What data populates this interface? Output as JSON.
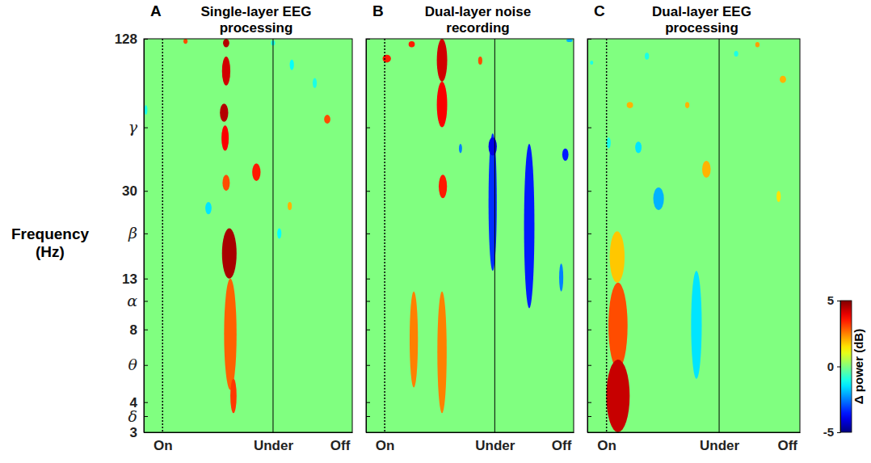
{
  "chart_data": [
    {
      "type": "heatmap",
      "panel": "A",
      "title": "Single-layer EEG processing",
      "y_label": "Frequency (Hz)",
      "xlim": [
        0,
        100
      ],
      "xticks": [
        {
          "value": 9,
          "label": "On"
        },
        {
          "value": 62,
          "label": "Under"
        },
        {
          "value": 94,
          "label": "Off"
        }
      ],
      "ylim": [
        3,
        128
      ],
      "log": "y",
      "yticks": [
        128,
        {
          "value": 55,
          "label": "γ"
        },
        30,
        {
          "value": 20,
          "label": "β"
        },
        13,
        {
          "value": 10.5,
          "label": "α"
        },
        8,
        {
          "value": 5.7,
          "label": "θ"
        },
        4,
        {
          "value": 3.5,
          "label": "δ"
        },
        3
      ],
      "background_value": 0,
      "cells": [
        {
          "x": 39.5,
          "width": 3,
          "f_low": 118,
          "f_high": 128,
          "value": 4.5
        },
        {
          "x": 39.5,
          "width": 4,
          "f_low": 82,
          "f_high": 108,
          "value": 4.2
        },
        {
          "x": 38.5,
          "width": 4,
          "f_low": 58,
          "f_high": 69,
          "value": 4.5
        },
        {
          "x": 39,
          "width": 3.5,
          "f_low": 44,
          "f_high": 56,
          "value": 3.8
        },
        {
          "x": 39.5,
          "width": 3.5,
          "f_low": 30,
          "f_high": 35,
          "value": 3
        },
        {
          "x": 20,
          "width": 2,
          "f_low": 122,
          "f_high": 128,
          "value": 3
        },
        {
          "x": 54,
          "width": 4,
          "f_low": 33,
          "f_high": 39,
          "value": 3.5
        },
        {
          "x": 41.5,
          "width": 6,
          "f_low": 4.5,
          "f_high": 13,
          "value": 2.8
        },
        {
          "x": 43,
          "width": 3,
          "f_low": 3.6,
          "f_high": 5,
          "value": 3.2
        },
        {
          "x": 41,
          "width": 7,
          "f_low": 13,
          "f_high": 21,
          "value": 4.6
        },
        {
          "x": 31,
          "width": 3,
          "f_low": 24,
          "f_high": 27,
          "value": -1.5
        },
        {
          "x": 1,
          "width": 1.5,
          "f_low": 62,
          "f_high": 68,
          "value": -1
        },
        {
          "x": 65,
          "width": 2,
          "f_low": 19,
          "f_high": 21,
          "value": -1.2
        },
        {
          "x": 71,
          "width": 2,
          "f_low": 95,
          "f_high": 105,
          "value": -1.2
        },
        {
          "x": 82,
          "width": 2,
          "f_low": 80,
          "f_high": 88,
          "value": -1
        },
        {
          "x": 62,
          "width": 2,
          "f_low": 120,
          "f_high": 126,
          "value": -1
        },
        {
          "x": 88,
          "width": 3,
          "f_low": 57,
          "f_high": 62,
          "value": 3
        },
        {
          "x": 70,
          "width": 2,
          "f_low": 25,
          "f_high": 27,
          "value": 2
        }
      ]
    },
    {
      "type": "heatmap",
      "panel": "B",
      "title": "Dual-layer noise recording",
      "xlim": [
        0,
        100
      ],
      "xticks": [
        {
          "value": 9,
          "label": "On"
        },
        {
          "value": 62,
          "label": "Under"
        },
        {
          "value": 94,
          "label": "Off"
        }
      ],
      "ylim": [
        3,
        128
      ],
      "log": "y",
      "yticks": [
        128,
        {
          "value": 55,
          "label": "γ"
        },
        30,
        {
          "value": 20,
          "label": "β"
        },
        13,
        {
          "value": 10.5,
          "label": "α"
        },
        8,
        {
          "value": 5.7,
          "label": "θ"
        },
        4,
        {
          "value": 3.5,
          "label": "δ"
        },
        3
      ],
      "tick_labels": "x",
      "background_value": 0,
      "cells": [
        {
          "x": 36.6,
          "width": 5,
          "f_low": 85,
          "f_high": 128,
          "value": 4.2
        },
        {
          "x": 36.6,
          "width": 5,
          "f_low": 55,
          "f_high": 85,
          "value": 3.8
        },
        {
          "x": 22,
          "width": 3,
          "f_low": 118,
          "f_high": 125,
          "value": 3.5
        },
        {
          "x": 10,
          "width": 4,
          "f_low": 102,
          "f_high": 110,
          "value": 3.5
        },
        {
          "x": 55,
          "width": 2,
          "f_low": 100,
          "f_high": 108,
          "value": 3
        },
        {
          "x": 37,
          "width": 4,
          "f_low": 28,
          "f_high": 35,
          "value": 3.5
        },
        {
          "x": 23,
          "width": 4,
          "f_low": 4.6,
          "f_high": 11.5,
          "value": 2.5
        },
        {
          "x": 36.6,
          "width": 4.5,
          "f_low": 3.6,
          "f_high": 11.5,
          "value": 2.5
        },
        {
          "x": 61,
          "width": 4,
          "f_low": 14,
          "f_high": 52,
          "value": -3.3
        },
        {
          "x": 61,
          "width": 4,
          "f_low": 42,
          "f_high": 50,
          "value": -4
        },
        {
          "x": 78.6,
          "width": 5,
          "f_low": 9.8,
          "f_high": 47,
          "value": -3.5
        },
        {
          "x": 96,
          "width": 3,
          "f_low": 40,
          "f_high": 45,
          "value": -3.5
        },
        {
          "x": 94,
          "width": 2,
          "f_low": 11.5,
          "f_high": 15,
          "value": -2.5
        },
        {
          "x": 45.5,
          "width": 1.5,
          "f_low": 43,
          "f_high": 47,
          "value": -2.5
        },
        {
          "x": 98,
          "width": 3,
          "f_low": 124,
          "f_high": 128,
          "value": -2
        }
      ]
    },
    {
      "type": "heatmap",
      "panel": "C",
      "title": "Dual-layer EEG processing",
      "xlim": [
        0,
        100
      ],
      "xticks": [
        {
          "value": 9,
          "label": "On"
        },
        {
          "value": 62,
          "label": "Under"
        },
        {
          "value": 94,
          "label": "Off"
        }
      ],
      "ylim": [
        3,
        128
      ],
      "log": "y",
      "yticks": [
        128,
        {
          "value": 55,
          "label": "γ"
        },
        30,
        {
          "value": 20,
          "label": "β"
        },
        13,
        {
          "value": 10.5,
          "label": "α"
        },
        8,
        {
          "value": 5.7,
          "label": "θ"
        },
        4,
        {
          "value": 3.5,
          "label": "δ"
        },
        3
      ],
      "tick_labels": "x",
      "background_value": 0,
      "colorbar": {
        "lim": [
          -5,
          5
        ],
        "ticks": [
          -5,
          0,
          5
        ],
        "label": "Δ power (dB)"
      },
      "cells": [
        {
          "x": 14,
          "width": 7,
          "f_low": 12.5,
          "f_high": 20.4,
          "value": 1.8
        },
        {
          "x": 14.4,
          "width": 9,
          "f_low": 5.5,
          "f_high": 12.5,
          "value": 3
        },
        {
          "x": 14.4,
          "width": 11,
          "f_low": 3,
          "f_high": 6,
          "value": 4.3
        },
        {
          "x": 51.3,
          "width": 5,
          "f_low": 5,
          "f_high": 14,
          "value": -1.5
        },
        {
          "x": 33.5,
          "width": 5,
          "f_low": 25,
          "f_high": 31,
          "value": -2
        },
        {
          "x": 56,
          "width": 4,
          "f_low": 34,
          "f_high": 40,
          "value": 2
        },
        {
          "x": 24,
          "width": 3,
          "f_low": 43,
          "f_high": 48,
          "value": -1.5
        },
        {
          "x": 20,
          "width": 3,
          "f_low": 66,
          "f_high": 70,
          "value": 2
        },
        {
          "x": 47,
          "width": 2,
          "f_low": 66,
          "f_high": 70,
          "value": 2
        },
        {
          "x": 10,
          "width": 2,
          "f_low": 45,
          "f_high": 50,
          "value": -1
        },
        {
          "x": 28,
          "width": 2,
          "f_low": 105,
          "f_high": 112,
          "value": -1
        },
        {
          "x": 92,
          "width": 3,
          "f_low": 84,
          "f_high": 90,
          "value": 2
        },
        {
          "x": 80,
          "width": 2,
          "f_low": 118,
          "f_high": 124,
          "value": 2.2
        },
        {
          "x": 70,
          "width": 2,
          "f_low": 108,
          "f_high": 114,
          "value": -1
        },
        {
          "x": 90,
          "width": 2,
          "f_low": 27,
          "f_high": 30,
          "value": 1.5
        },
        {
          "x": 2,
          "width": 1.5,
          "f_low": 100,
          "f_high": 104,
          "value": -1
        }
      ]
    }
  ]
}
